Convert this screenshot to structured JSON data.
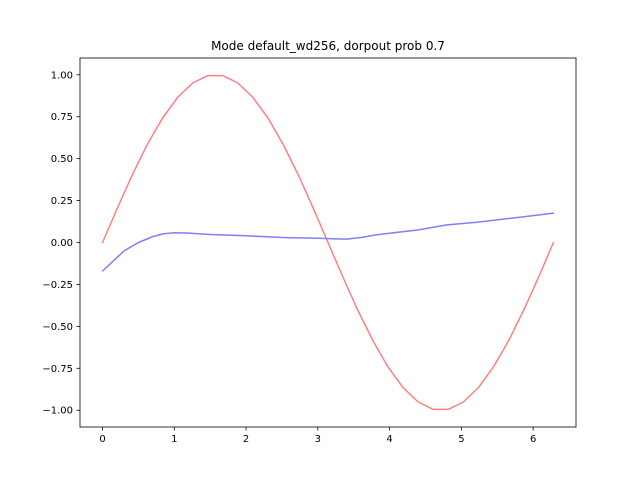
{
  "chart_data": {
    "type": "line",
    "title": "Mode default_wd256, dorpout prob 0.7",
    "xlabel": "",
    "ylabel": "",
    "xlim": [
      -0.314,
      6.597
    ],
    "ylim": [
      -1.1,
      1.1
    ],
    "xticks": [
      0,
      1,
      2,
      3,
      4,
      5,
      6
    ],
    "xtick_labels": [
      "0",
      "1",
      "2",
      "3",
      "4",
      "5",
      "6"
    ],
    "yticks": [
      1.0,
      0.75,
      0.5,
      0.25,
      0.0,
      -0.25,
      -0.5,
      -0.75,
      -1.0
    ],
    "ytick_labels": [
      "1.00",
      "0.75",
      "0.50",
      "0.25",
      "0.00",
      "−0.25",
      "−0.50",
      "−0.75",
      "−1.00"
    ],
    "grid": false,
    "legend": "none",
    "series": [
      {
        "color": "#ff7f7f",
        "x": [
          0.0,
          0.209,
          0.419,
          0.628,
          0.838,
          1.047,
          1.257,
          1.466,
          1.676,
          1.885,
          2.094,
          2.304,
          2.513,
          2.723,
          2.932,
          3.142,
          3.351,
          3.56,
          3.77,
          3.979,
          4.189,
          4.398,
          4.608,
          4.817,
          5.027,
          5.236,
          5.445,
          5.655,
          5.864,
          6.074,
          6.283
        ],
        "y": [
          0.0,
          0.208,
          0.407,
          0.588,
          0.743,
          0.866,
          0.951,
          0.995,
          0.995,
          0.951,
          0.866,
          0.743,
          0.588,
          0.407,
          0.208,
          0.0,
          -0.208,
          -0.407,
          -0.588,
          -0.743,
          -0.866,
          -0.951,
          -0.995,
          -0.995,
          -0.951,
          -0.866,
          -0.743,
          -0.588,
          -0.407,
          -0.208,
          0.0
        ]
      },
      {
        "color": "#7f7fff",
        "x": [
          0.0,
          0.15,
          0.3,
          0.5,
          0.7,
          0.85,
          1.0,
          1.2,
          1.5,
          2.0,
          2.5,
          3.0,
          3.2,
          3.4,
          3.6,
          3.8,
          4.0,
          4.4,
          4.8,
          5.2,
          5.6,
          6.0,
          6.283
        ],
        "y": [
          -0.17,
          -0.11,
          -0.05,
          0.0,
          0.035,
          0.052,
          0.058,
          0.056,
          0.048,
          0.04,
          0.03,
          0.025,
          0.022,
          0.02,
          0.03,
          0.045,
          0.055,
          0.075,
          0.105,
          0.12,
          0.14,
          0.16,
          0.175
        ]
      }
    ]
  }
}
